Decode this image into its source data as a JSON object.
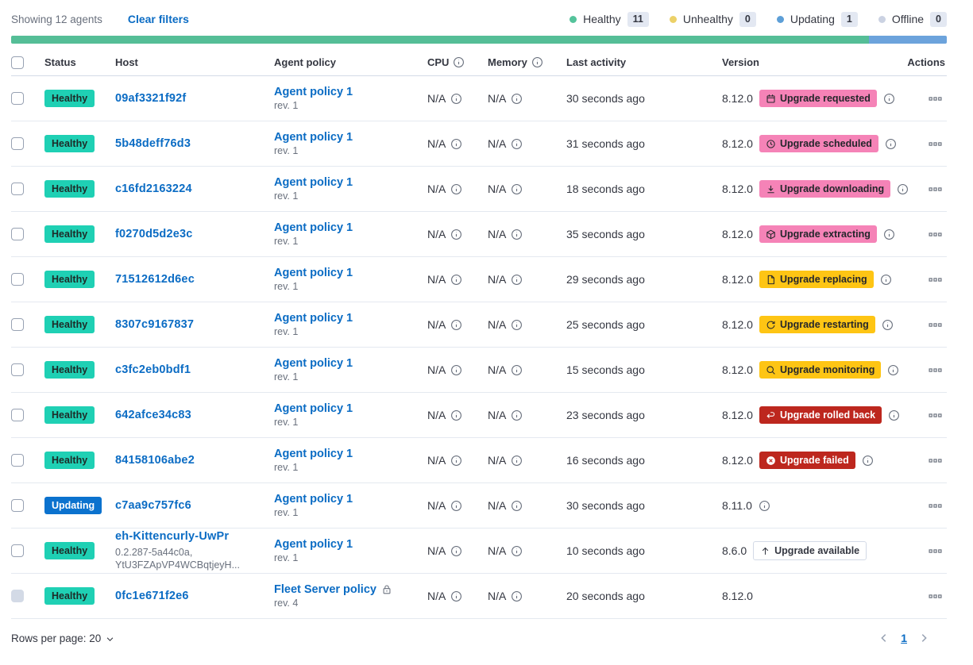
{
  "colors": {
    "link": "#0b6cc4",
    "healthy_badge": "#1fd0b4",
    "updating_badge": "#0b72ce",
    "pink_badge": "#f583b7",
    "warning_badge": "#fec514",
    "danger_badge": "#bd271e",
    "bar_green": "#55be97",
    "bar_blue": "#6ca3dc"
  },
  "toolbar": {
    "showing": "Showing 12 agents",
    "clear_filters": "Clear filters",
    "legend": [
      {
        "label": "Healthy",
        "count": "11",
        "color": "#54c39b"
      },
      {
        "label": "Unhealthy",
        "count": "0",
        "color": "#ecd168"
      },
      {
        "label": "Updating",
        "count": "1",
        "color": "#5d9fd7"
      },
      {
        "label": "Offline",
        "count": "0",
        "color": "#cbd2e2"
      }
    ]
  },
  "health_bar": {
    "segments": [
      {
        "color": "#55be97",
        "percent": 91.67
      },
      {
        "color": "#6ca3dc",
        "percent": 8.33
      }
    ]
  },
  "table": {
    "headers": {
      "status": "Status",
      "host": "Host",
      "policy": "Agent policy",
      "cpu": "CPU",
      "memory": "Memory",
      "last_activity": "Last activity",
      "version": "Version",
      "actions": "Actions"
    },
    "rows": [
      {
        "status": {
          "label": "Healthy",
          "variant": "healthy"
        },
        "host": "09af3321f92f",
        "policy": {
          "name": "Agent policy 1",
          "rev": "rev. 1",
          "locked": false
        },
        "cpu": "N/A",
        "memory": "N/A",
        "last_activity": "30 seconds ago",
        "version": "8.12.0",
        "upgrade": {
          "label": "Upgrade requested",
          "icon": "calendar",
          "variant": "pink"
        },
        "version_info": true
      },
      {
        "status": {
          "label": "Healthy",
          "variant": "healthy"
        },
        "host": "5b48deff76d3",
        "policy": {
          "name": "Agent policy 1",
          "rev": "rev. 1",
          "locked": false
        },
        "cpu": "N/A",
        "memory": "N/A",
        "last_activity": "31 seconds ago",
        "version": "8.12.0",
        "upgrade": {
          "label": "Upgrade scheduled",
          "icon": "clock",
          "variant": "pink"
        },
        "version_info": true
      },
      {
        "status": {
          "label": "Healthy",
          "variant": "healthy"
        },
        "host": "c16fd2163224",
        "policy": {
          "name": "Agent policy 1",
          "rev": "rev. 1",
          "locked": false
        },
        "cpu": "N/A",
        "memory": "N/A",
        "last_activity": "18 seconds ago",
        "version": "8.12.0",
        "upgrade": {
          "label": "Upgrade downloading",
          "icon": "download",
          "variant": "pink"
        },
        "version_info": true
      },
      {
        "status": {
          "label": "Healthy",
          "variant": "healthy"
        },
        "host": "f0270d5d2e3c",
        "policy": {
          "name": "Agent policy 1",
          "rev": "rev. 1",
          "locked": false
        },
        "cpu": "N/A",
        "memory": "N/A",
        "last_activity": "35 seconds ago",
        "version": "8.12.0",
        "upgrade": {
          "label": "Upgrade extracting",
          "icon": "package",
          "variant": "pink"
        },
        "version_info": true
      },
      {
        "status": {
          "label": "Healthy",
          "variant": "healthy"
        },
        "host": "71512612d6ec",
        "policy": {
          "name": "Agent policy 1",
          "rev": "rev. 1",
          "locked": false
        },
        "cpu": "N/A",
        "memory": "N/A",
        "last_activity": "29 seconds ago",
        "version": "8.12.0",
        "upgrade": {
          "label": "Upgrade replacing",
          "icon": "document",
          "variant": "warning"
        },
        "version_info": true
      },
      {
        "status": {
          "label": "Healthy",
          "variant": "healthy"
        },
        "host": "8307c9167837",
        "policy": {
          "name": "Agent policy 1",
          "rev": "rev. 1",
          "locked": false
        },
        "cpu": "N/A",
        "memory": "N/A",
        "last_activity": "25 seconds ago",
        "version": "8.12.0",
        "upgrade": {
          "label": "Upgrade restarting",
          "icon": "refresh",
          "variant": "warning"
        },
        "version_info": true
      },
      {
        "status": {
          "label": "Healthy",
          "variant": "healthy"
        },
        "host": "c3fc2eb0bdf1",
        "policy": {
          "name": "Agent policy 1",
          "rev": "rev. 1",
          "locked": false
        },
        "cpu": "N/A",
        "memory": "N/A",
        "last_activity": "15 seconds ago",
        "version": "8.12.0",
        "upgrade": {
          "label": "Upgrade monitoring",
          "icon": "inspect",
          "variant": "warning"
        },
        "version_info": true
      },
      {
        "status": {
          "label": "Healthy",
          "variant": "healthy"
        },
        "host": "642afce34c83",
        "policy": {
          "name": "Agent policy 1",
          "rev": "rev. 1",
          "locked": false
        },
        "cpu": "N/A",
        "memory": "N/A",
        "last_activity": "23 seconds ago",
        "version": "8.12.0",
        "upgrade": {
          "label": "Upgrade rolled back",
          "icon": "return",
          "variant": "danger"
        },
        "version_info": true
      },
      {
        "status": {
          "label": "Healthy",
          "variant": "healthy"
        },
        "host": "84158106abe2",
        "policy": {
          "name": "Agent policy 1",
          "rev": "rev. 1",
          "locked": false
        },
        "cpu": "N/A",
        "memory": "N/A",
        "last_activity": "16 seconds ago",
        "version": "8.12.0",
        "upgrade": {
          "label": "Upgrade failed",
          "icon": "error",
          "variant": "danger"
        },
        "version_info": true
      },
      {
        "status": {
          "label": "Updating",
          "variant": "updating"
        },
        "host": "c7aa9c757fc6",
        "policy": {
          "name": "Agent policy 1",
          "rev": "rev. 1",
          "locked": false
        },
        "cpu": "N/A",
        "memory": "N/A",
        "last_activity": "30 seconds ago",
        "version": "8.11.0",
        "upgrade": null,
        "version_info": true
      },
      {
        "status": {
          "label": "Healthy",
          "variant": "healthy"
        },
        "host": "eh-Kittencurly-UwPr",
        "host_sub": [
          "0.2.287-5a44c0a,",
          "YtU3FZApVP4WCBqtjeyH..."
        ],
        "policy": {
          "name": "Agent policy 1",
          "rev": "rev. 1",
          "locked": false
        },
        "cpu": "N/A",
        "memory": "N/A",
        "last_activity": "10 seconds ago",
        "version": "8.6.0",
        "upgrade": {
          "label": "Upgrade available",
          "icon": "arrowUp",
          "variant": "hollow"
        },
        "version_info": false
      },
      {
        "status": {
          "label": "Healthy",
          "variant": "healthy"
        },
        "host": "0fc1e671f2e6",
        "policy": {
          "name": "Fleet Server policy",
          "rev": "rev. 4",
          "locked": true
        },
        "cpu": "N/A",
        "memory": "N/A",
        "last_activity": "20 seconds ago",
        "version": "8.12.0",
        "upgrade": null,
        "version_info": false,
        "checkbox_disabled": true
      }
    ]
  },
  "footer": {
    "rows_per_page": "Rows per page: 20",
    "page": "1"
  }
}
